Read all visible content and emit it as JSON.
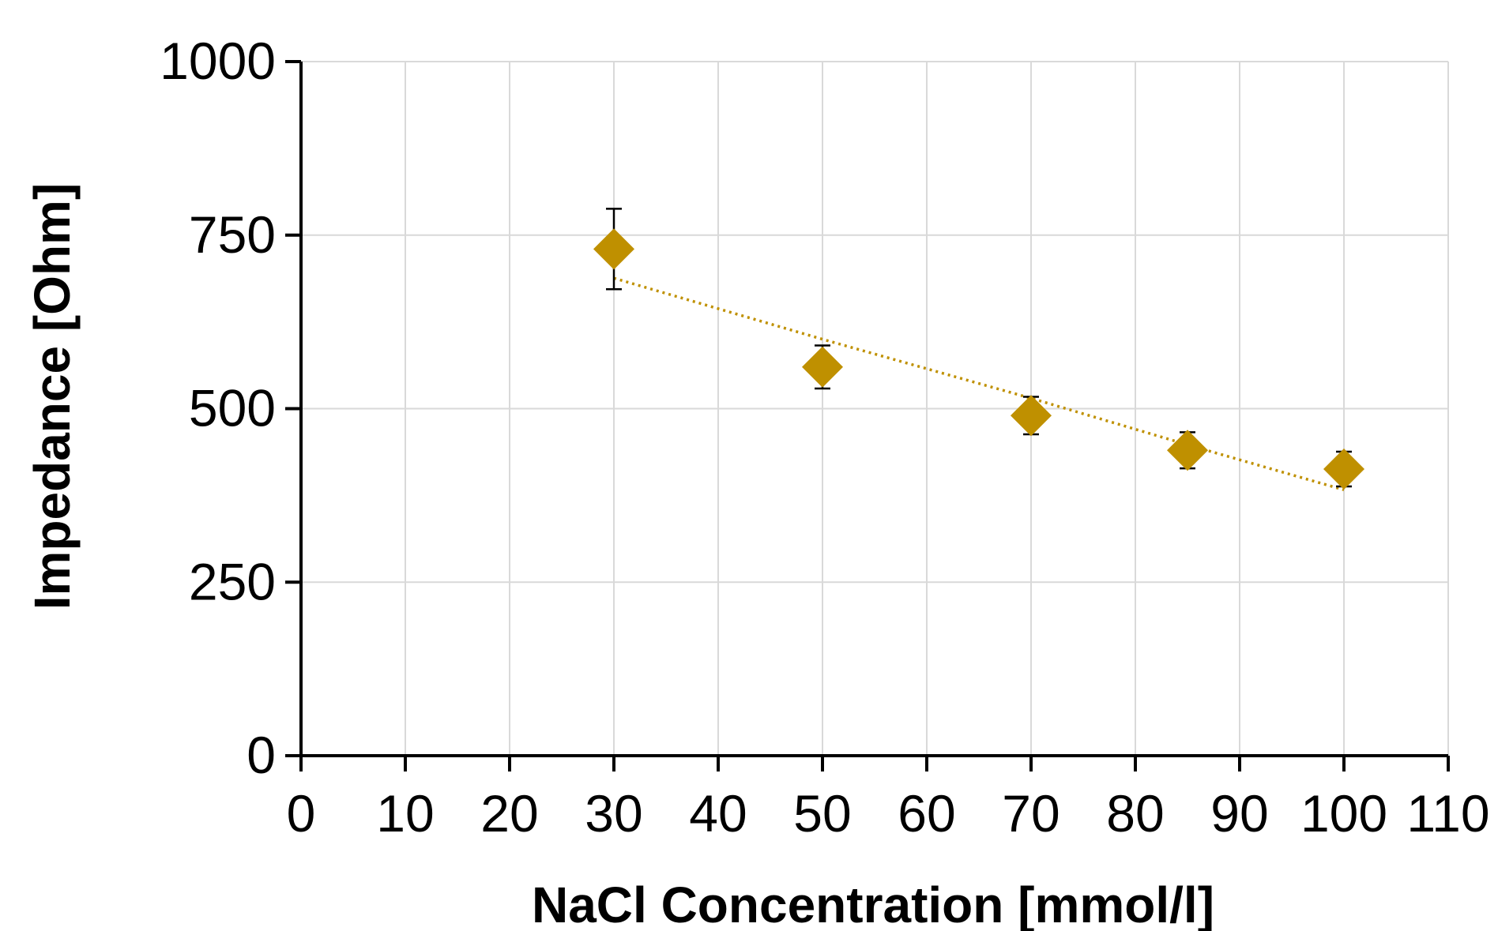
{
  "chart_data": {
    "type": "scatter",
    "title": "",
    "xlabel": "NaCl Concentration [mmol/l]",
    "ylabel": "Impedance [Ohm]",
    "xlim": [
      0,
      110
    ],
    "ylim": [
      0,
      1000
    ],
    "x_ticks": [
      0,
      10,
      20,
      30,
      40,
      50,
      60,
      70,
      80,
      90,
      100,
      110
    ],
    "y_ticks": [
      0,
      250,
      500,
      750,
      1000
    ],
    "x_tick_labels": [
      "0",
      "10",
      "20",
      "30",
      "40",
      "50",
      "60",
      "70",
      "80",
      "90",
      "100",
      "110"
    ],
    "y_tick_labels": [
      "0",
      "250",
      "500",
      "750",
      "1000"
    ],
    "grid": true,
    "legend": "none",
    "series": [
      {
        "marker": "diamond",
        "color": "#BF9000",
        "points": [
          {
            "x": 30,
            "y": 730,
            "err": 58
          },
          {
            "x": 50,
            "y": 560,
            "err": 31
          },
          {
            "x": 70,
            "y": 490,
            "err": 27
          },
          {
            "x": 85,
            "y": 440,
            "err": 26
          },
          {
            "x": 100,
            "y": 413,
            "err": 25
          }
        ]
      }
    ],
    "trendline": {
      "style": "dotted",
      "color": "#BF9000",
      "points": [
        {
          "x": 30,
          "y": 688
        },
        {
          "x": 50,
          "y": 600
        },
        {
          "x": 70,
          "y": 515
        },
        {
          "x": 85,
          "y": 448
        },
        {
          "x": 100,
          "y": 383
        }
      ]
    }
  }
}
